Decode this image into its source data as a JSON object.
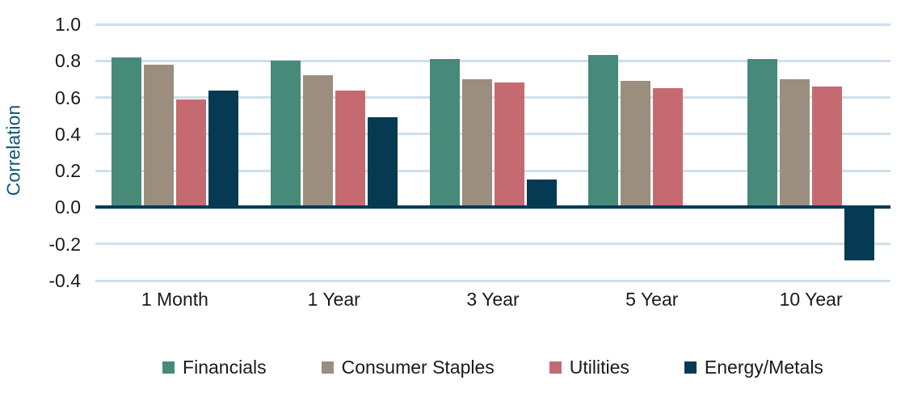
{
  "chart_data": {
    "type": "bar",
    "ylabel": "Correlation",
    "categories": [
      "1 Month",
      "1 Year",
      "3 Year",
      "5 Year",
      "10 Year"
    ],
    "series": [
      {
        "name": "Financials",
        "color": "#478A7A",
        "values": [
          0.82,
          0.8,
          0.81,
          0.83,
          0.81
        ]
      },
      {
        "name": "Consumer Staples",
        "color": "#9B8E7E",
        "values": [
          0.78,
          0.72,
          0.7,
          0.69,
          0.7
        ]
      },
      {
        "name": "Utilities",
        "color": "#C66A71",
        "values": [
          0.59,
          0.64,
          0.68,
          0.65,
          0.66
        ]
      },
      {
        "name": "Energy/Metals",
        "color": "#063A52",
        "values": [
          0.64,
          0.49,
          0.15,
          0.0,
          -0.29
        ]
      }
    ],
    "yticks": [
      1.0,
      0.8,
      0.6,
      0.4,
      0.2,
      0.0,
      -0.2,
      -0.4
    ],
    "ylim": [
      -0.4,
      1.0
    ],
    "grid": true,
    "legend_position": "bottom",
    "colors": {
      "gridline": "#D0DFEA",
      "zero_line": "#063A52",
      "y_axis_title_text": "#155477",
      "tick_text": "#1A1A1A"
    }
  }
}
